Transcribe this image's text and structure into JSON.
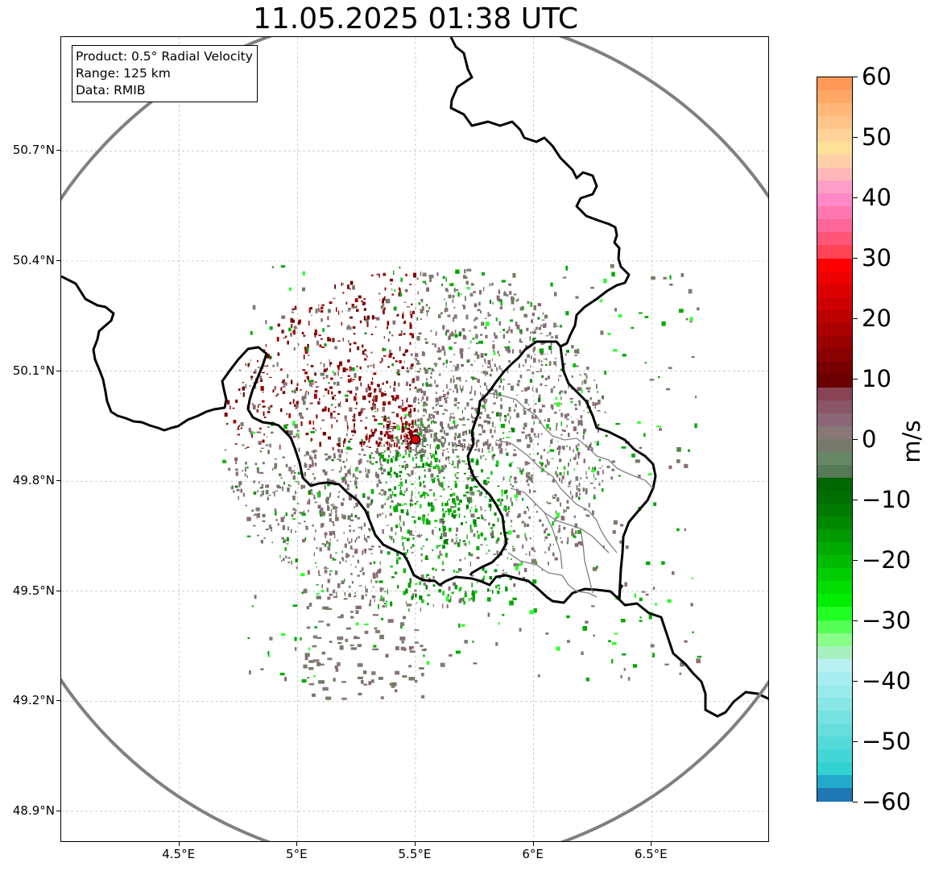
{
  "title": "11.05.2025 01:38 UTC",
  "info_box": {
    "product": "Product: 0.5° Radial Velocity",
    "range": "Range: 125 km",
    "data": "Data: RMIB"
  },
  "axes": {
    "lat_labels": [
      "50.7°N",
      "50.4°N",
      "50.1°N",
      "49.8°N",
      "49.5°N",
      "49.2°N",
      "48.9°N"
    ],
    "lat_values": [
      50.7,
      50.4,
      50.1,
      49.8,
      49.5,
      49.2,
      48.9
    ],
    "lon_labels": [
      "4.5°E",
      "5°E",
      "5.5°E",
      "6°E",
      "6.5°E"
    ],
    "lon_values": [
      4.5,
      5.0,
      5.5,
      6.0,
      6.5
    ],
    "lon_range": [
      4.0,
      7.0
    ],
    "lat_range": [
      48.8,
      51.0
    ],
    "grid": true
  },
  "radar": {
    "site_lon": 5.5,
    "site_lat": 49.914,
    "range_km": 125,
    "site_color": "#e00000",
    "range_ring_color": "#808080"
  },
  "colorbar": {
    "unit": "m/s",
    "min": -60,
    "max": 60,
    "tick_labels": [
      "60",
      "50",
      "40",
      "30",
      "20",
      "10",
      "0",
      "−10",
      "−20",
      "−30",
      "−40",
      "−50",
      "−60"
    ],
    "tick_values": [
      60,
      50,
      40,
      30,
      20,
      10,
      0,
      -10,
      -20,
      -30,
      -40,
      -50,
      -60
    ],
    "colors_top_to_bottom": [
      "#ff9955",
      "#ffa866",
      "#ffb877",
      "#ffc488",
      "#ffd399",
      "#ffe099",
      "#ffd0a8",
      "#ffb8b8",
      "#ff9ec8",
      "#ff88c8",
      "#ff77b0",
      "#ff6699",
      "#ff5577",
      "#ff4455",
      "#ff0000",
      "#ee0000",
      "#dd0000",
      "#cc0000",
      "#bb0000",
      "#aa0000",
      "#990000",
      "#880000",
      "#770000",
      "#6a0000",
      "#884455",
      "#8a5566",
      "#8a6677",
      "#887777",
      "#777a6a",
      "#668866",
      "#557a55",
      "#006600",
      "#006e00",
      "#007a00",
      "#008800",
      "#009900",
      "#00aa00",
      "#00bb00",
      "#00cc00",
      "#00dd00",
      "#00ee00",
      "#22ff22",
      "#55ff55",
      "#88ff88",
      "#a8f0c0",
      "#b8f0f0",
      "#a8eef0",
      "#99eaea",
      "#88e6e6",
      "#77e2e2",
      "#66dede",
      "#55dada",
      "#44d6d6",
      "#33d2d2",
      "#22aacc",
      "#1f77b4"
    ]
  },
  "legend_colors": {
    "outbound_strong": "#800000",
    "near_zero": "#857a76",
    "inbound": "#00a000",
    "inbound_bright": "#30ff30",
    "border": "#000000",
    "admin_border": "#808080"
  }
}
